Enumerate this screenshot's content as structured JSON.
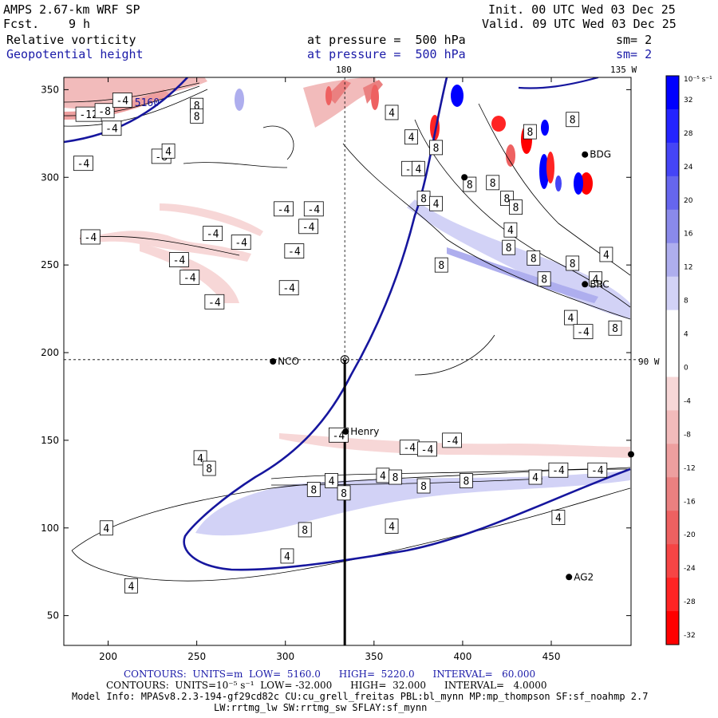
{
  "header": {
    "model": "AMPS 2.67-km WRF SP",
    "fcst_label": "Fcst.",
    "fcst_value": "9 h",
    "init": "Init. 00 UTC Wed 03 Dec 25",
    "valid": "Valid. 09 UTC Wed 03 Dec 25",
    "field1": "Relative vorticity",
    "field2": "Geopotential height",
    "pressure1": "at pressure =  500 hPa",
    "pressure2": "at pressure =  500 hPa",
    "sm1": "sm= 2",
    "sm2": "sm= 2",
    "top_lon_180": "180",
    "top_lon_135": "135 W",
    "right_lon_90": "90 W"
  },
  "colorbar": {
    "unit": "10⁻⁵ s⁻¹",
    "ticks": [
      "32",
      "28",
      "24",
      "20",
      "16",
      "12",
      "8",
      "4",
      "0",
      "-4",
      "-8",
      "-12",
      "-16",
      "-20",
      "-24",
      "-28",
      "-32"
    ],
    "colors": [
      "#0000ff",
      "#2424ff",
      "#4545f6",
      "#6666ee",
      "#8a8aea",
      "#aeaeee",
      "#d2d2f6",
      "#ffffff",
      "#ffffff",
      "#f7d7d7",
      "#f2bbbb",
      "#ee9f9f",
      "#ea8080",
      "#ee6161",
      "#f64545",
      "#ff2424",
      "#ff0000"
    ]
  },
  "chart_data": {
    "type": "heatmap",
    "title": "Relative vorticity / Geopotential height at 500 hPa",
    "xlim": [
      175,
      495
    ],
    "ylim": [
      33,
      357
    ],
    "x_ticks": [
      200,
      250,
      300,
      350,
      400,
      450
    ],
    "y_ticks": [
      50,
      100,
      150,
      200,
      250,
      300,
      350
    ],
    "crosshair": {
      "x": 333.5,
      "y": 196
    },
    "stations": [
      {
        "name": "NCO",
        "x": 293,
        "y": 195
      },
      {
        "name": "Henry",
        "x": 334,
        "y": 155
      },
      {
        "name": "BDG",
        "x": 469,
        "y": 313
      },
      {
        "name": "BRC",
        "x": 469,
        "y": 239
      },
      {
        "name": "AG2",
        "x": 460,
        "y": 72
      }
    ],
    "contour_labels": [
      {
        "t": "-12",
        "x": 189,
        "y": 336
      },
      {
        "t": "-8",
        "x": 198,
        "y": 338
      },
      {
        "t": "-4",
        "x": 208,
        "y": 344
      },
      {
        "t": "-4",
        "x": 202,
        "y": 328
      },
      {
        "t": "-8",
        "x": 230,
        "y": 312
      },
      {
        "t": "-4",
        "x": 186,
        "y": 308
      },
      {
        "t": "8",
        "x": 250,
        "y": 341
      },
      {
        "t": "8",
        "x": 250,
        "y": 335
      },
      {
        "t": "4",
        "x": 234,
        "y": 315
      },
      {
        "t": "-4",
        "x": 259,
        "y": 268
      },
      {
        "t": "-4",
        "x": 275,
        "y": 263
      },
      {
        "t": "-4",
        "x": 190,
        "y": 266
      },
      {
        "t": "-4",
        "x": 240,
        "y": 253
      },
      {
        "t": "-4",
        "x": 246,
        "y": 243
      },
      {
        "t": "-4",
        "x": 260,
        "y": 229
      },
      {
        "t": "-4",
        "x": 305,
        "y": 258
      },
      {
        "t": "-4",
        "x": 299,
        "y": 282
      },
      {
        "t": "-4",
        "x": 316,
        "y": 282
      },
      {
        "t": "-4",
        "x": 313,
        "y": 272
      },
      {
        "t": "-4",
        "x": 302,
        "y": 237
      },
      {
        "t": "-4",
        "x": 371,
        "y": 305
      },
      {
        "t": "4",
        "x": 371,
        "y": 323
      },
      {
        "t": "4",
        "x": 375,
        "y": 305
      },
      {
        "t": "8",
        "x": 378,
        "y": 288
      },
      {
        "t": "8",
        "x": 385,
        "y": 317
      },
      {
        "t": "4",
        "x": 385,
        "y": 285
      },
      {
        "t": "8",
        "x": 388,
        "y": 250
      },
      {
        "t": "4",
        "x": 360,
        "y": 337
      },
      {
        "t": "8",
        "x": 404,
        "y": 296
      },
      {
        "t": "8",
        "x": 417,
        "y": 297
      },
      {
        "t": "8",
        "x": 425,
        "y": 288
      },
      {
        "t": "8",
        "x": 430,
        "y": 283
      },
      {
        "t": "4",
        "x": 427,
        "y": 270
      },
      {
        "t": "8",
        "x": 426,
        "y": 260
      },
      {
        "t": "8",
        "x": 440,
        "y": 254
      },
      {
        "t": "8",
        "x": 446,
        "y": 242
      },
      {
        "t": "8",
        "x": 438,
        "y": 326
      },
      {
        "t": "8",
        "x": 462,
        "y": 333
      },
      {
        "t": "8",
        "x": 462,
        "y": 251
      },
      {
        "t": "4",
        "x": 481,
        "y": 256
      },
      {
        "t": "4",
        "x": 475,
        "y": 242
      },
      {
        "t": "4",
        "x": 461,
        "y": 220
      },
      {
        "t": "-4",
        "x": 468,
        "y": 212
      },
      {
        "t": "8",
        "x": 486,
        "y": 214
      },
      {
        "t": "-4",
        "x": 330,
        "y": 153
      },
      {
        "t": "-4",
        "x": 370,
        "y": 146
      },
      {
        "t": "-4",
        "x": 380,
        "y": 145
      },
      {
        "t": "-4",
        "x": 394,
        "y": 150
      },
      {
        "t": "-4",
        "x": 454,
        "y": 133
      },
      {
        "t": "-4",
        "x": 476,
        "y": 133
      },
      {
        "t": "4",
        "x": 355,
        "y": 130
      },
      {
        "t": "8",
        "x": 362,
        "y": 129
      },
      {
        "t": "8",
        "x": 378,
        "y": 124
      },
      {
        "t": "8",
        "x": 402,
        "y": 127
      },
      {
        "t": "4",
        "x": 441,
        "y": 129
      },
      {
        "t": "4",
        "x": 454,
        "y": 106
      },
      {
        "t": "8",
        "x": 316,
        "y": 122
      },
      {
        "t": "4",
        "x": 326,
        "y": 127
      },
      {
        "t": "8",
        "x": 333,
        "y": 120
      },
      {
        "t": "8",
        "x": 311,
        "y": 99
      },
      {
        "t": "4",
        "x": 301,
        "y": 84
      },
      {
        "t": "4",
        "x": 360,
        "y": 101
      },
      {
        "t": "4",
        "x": 199,
        "y": 100
      },
      {
        "t": "4",
        "x": 213,
        "y": 67
      },
      {
        "t": "4",
        "x": 252,
        "y": 140
      },
      {
        "t": "8",
        "x": 257,
        "y": 134
      }
    ],
    "height_labels": [
      {
        "t": "5160",
        "x": 222,
        "y": 343
      }
    ]
  },
  "footer": {
    "line1": "CONTOURS:  UNITS=m  LOW=  5160.0      HIGH=  5220.0      INTERVAL=   60.000",
    "line2": "CONTOURS:  UNITS=10⁻⁵ s⁻¹  LOW= -32.000      HIGH=  32.000      INTERVAL=   4.0000",
    "line3": "Model Info: MPASv8.2.3-194-gf29cd82c CU:cu_grell_freitas PBL:bl_mynn MP:mp_thompson SF:sf_noahmp 2.7",
    "line4": "LW:rrtmg_lw SW:rrtmg_sw SFLAY:sf_mynn"
  }
}
